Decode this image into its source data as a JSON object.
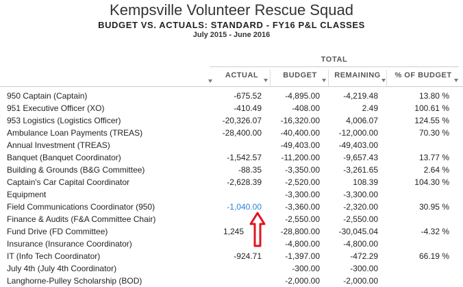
{
  "report": {
    "company": "Kempsville Volunteer Rescue Squad",
    "title": "BUDGET VS. ACTUALS: STANDARD - FY16 P&L CLASSES",
    "period": "July 2015 - June 2016"
  },
  "columns": {
    "group": "TOTAL",
    "actual": "ACTUAL",
    "budget": "BUDGET",
    "remaining": "REMAINING",
    "pct_of_budget": "% OF BUDGET"
  },
  "rows": [
    {
      "name": "950  Captain (Captain)",
      "actual": "-675.52",
      "budget": "-4,895.00",
      "remaining": "-4,219.48",
      "pct": "13.80 %"
    },
    {
      "name": "951  Executive Officer (XO)",
      "actual": "-410.49",
      "budget": "-408.00",
      "remaining": "2.49",
      "pct": "100.61 %"
    },
    {
      "name": "953  Logistics (Logistics Officer)",
      "actual": "-20,326.07",
      "budget": "-16,320.00",
      "remaining": "4,006.07",
      "pct": "124.55 %"
    },
    {
      "name": "Ambulance Loan Payments (TREAS)",
      "actual": "-28,400.00",
      "budget": "-40,400.00",
      "remaining": "-12,000.00",
      "pct": "70.30 %"
    },
    {
      "name": "Annual Investment (TREAS)",
      "actual": "",
      "budget": "-49,403.00",
      "remaining": "-49,403.00",
      "pct": ""
    },
    {
      "name": "Banquet (Banquet Coordinator)",
      "actual": "-1,542.57",
      "budget": "-11,200.00",
      "remaining": "-9,657.43",
      "pct": "13.77 %"
    },
    {
      "name": "Building & Grounds (B&G Committee)",
      "actual": "-88.35",
      "budget": "-3,350.00",
      "remaining": "-3,261.65",
      "pct": "2.64 %"
    },
    {
      "name": "Captain's Car Capital Coordinator",
      "actual": "-2,628.39",
      "budget": "-2,520.00",
      "remaining": "108.39",
      "pct": "104.30 %"
    },
    {
      "name": "Equipment",
      "actual": "",
      "budget": "-3,300.00",
      "remaining": "-3,300.00",
      "pct": ""
    },
    {
      "name": "Field Communications Coordinator (950)",
      "actual": "-1,040.00",
      "budget": "-3,360.00",
      "remaining": "-2,320.00",
      "pct": "30.95 %"
    },
    {
      "name": "Finance & Audits (F&A Committee Chair)",
      "actual": "",
      "budget": "-2,550.00",
      "remaining": "-2,550.00",
      "pct": ""
    },
    {
      "name": "Fund Drive (FD Committee)",
      "actual": "1,245",
      "budget": "-28,800.00",
      "remaining": "-30,045.04",
      "pct": "-4.32 %"
    },
    {
      "name": "Insurance (Insurance Coordinator)",
      "actual": "",
      "budget": "-4,800.00",
      "remaining": "-4,800.00",
      "pct": ""
    },
    {
      "name": "IT (Info Tech Coordinator)",
      "actual": "-924.71",
      "budget": "-1,397.00",
      "remaining": "-472.29",
      "pct": "66.19 %"
    },
    {
      "name": "July 4th (July 4th Coordinator)",
      "actual": "",
      "budget": "-300.00",
      "remaining": "-300.00",
      "pct": ""
    },
    {
      "name": "Langhorne-Pulley Scholarship (BOD)",
      "actual": "",
      "budget": "-2,000.00",
      "remaining": "-2,000.00",
      "pct": ""
    }
  ],
  "colors": {
    "link": "#2a7fd4",
    "annotation_arrow": "#e0141e"
  },
  "icons": {
    "sort": "sort-triangle-icon",
    "annotation": "red-up-arrow-annotation"
  }
}
